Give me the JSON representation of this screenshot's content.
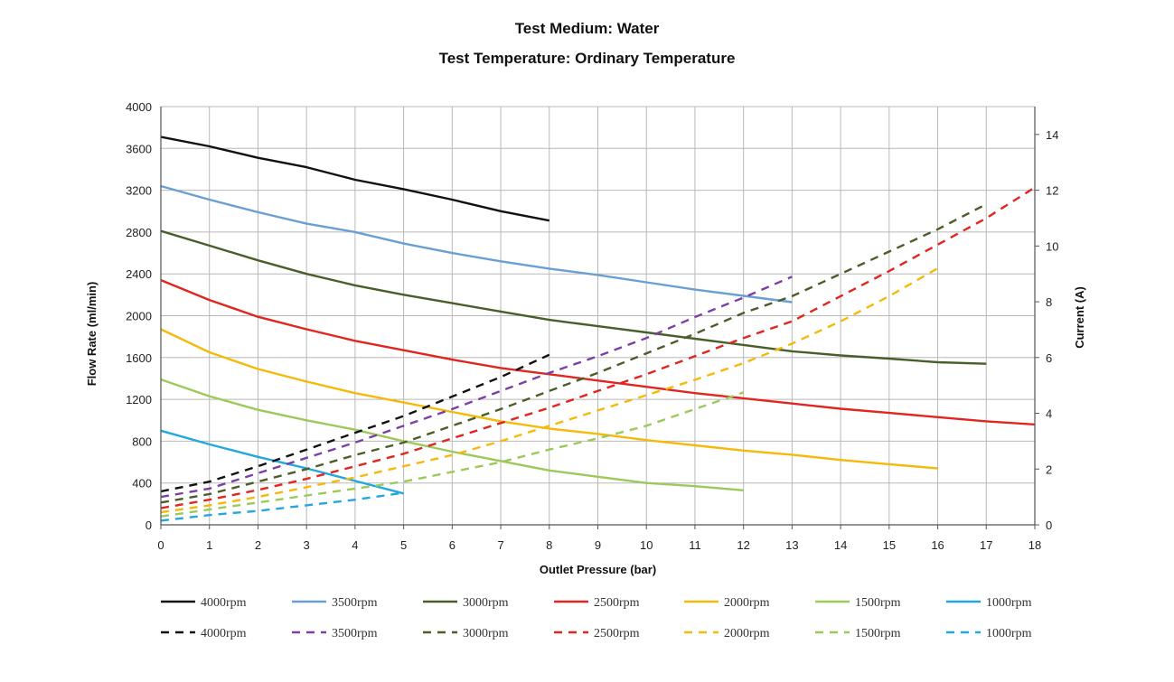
{
  "chart_data": {
    "type": "line",
    "title": "Test Medium: Water",
    "subtitle": "Test Temperature: Ordinary Temperature",
    "xlabel": "Outlet Pressure (bar)",
    "ylabel": "Flow Rate (ml/min)",
    "y2label": "Current (A)",
    "xlim": [
      0,
      18
    ],
    "ylim": [
      0,
      4000
    ],
    "y2lim": [
      0,
      15
    ],
    "xticks": [
      "0",
      "1",
      "2",
      "3",
      "4",
      "5",
      "6",
      "7",
      "8",
      "9",
      "10",
      "11",
      "12",
      "13",
      "14",
      "15",
      "16",
      "17",
      "18"
    ],
    "yticks": [
      "0",
      "400",
      "800",
      "1200",
      "1600",
      "2000",
      "2400",
      "2800",
      "3200",
      "3600",
      "4000"
    ],
    "y2ticks": [
      "0",
      "2",
      "4",
      "6",
      "8",
      "10",
      "12",
      "14"
    ],
    "grid": true,
    "legend_position": "bottom",
    "series": [
      {
        "name": "4000rpm",
        "axis": "left",
        "style": "solid",
        "color": "#111111",
        "points": [
          [
            0,
            3710
          ],
          [
            1,
            3620
          ],
          [
            2,
            3510
          ],
          [
            3,
            3420
          ],
          [
            4,
            3300
          ],
          [
            5,
            3210
          ],
          [
            6,
            3110
          ],
          [
            7,
            3000
          ],
          [
            8,
            2910
          ]
        ]
      },
      {
        "name": "3500rpm",
        "axis": "left",
        "style": "solid",
        "color": "#6a9fd4",
        "points": [
          [
            0,
            3240
          ],
          [
            1,
            3110
          ],
          [
            2,
            2990
          ],
          [
            3,
            2880
          ],
          [
            4,
            2800
          ],
          [
            5,
            2690
          ],
          [
            6,
            2600
          ],
          [
            7,
            2520
          ],
          [
            8,
            2450
          ],
          [
            9,
            2390
          ],
          [
            10,
            2320
          ],
          [
            11,
            2250
          ],
          [
            12,
            2190
          ],
          [
            13,
            2130
          ]
        ]
      },
      {
        "name": "3000rpm",
        "axis": "left",
        "style": "solid",
        "color": "#4a5e2a",
        "points": [
          [
            0,
            2810
          ],
          [
            1,
            2670
          ],
          [
            2,
            2530
          ],
          [
            3,
            2400
          ],
          [
            4,
            2290
          ],
          [
            5,
            2200
          ],
          [
            6,
            2120
          ],
          [
            7,
            2040
          ],
          [
            8,
            1960
          ],
          [
            9,
            1900
          ],
          [
            10,
            1840
          ],
          [
            11,
            1780
          ],
          [
            12,
            1720
          ],
          [
            13,
            1660
          ],
          [
            14,
            1620
          ],
          [
            15,
            1590
          ],
          [
            16,
            1555
          ],
          [
            17,
            1540
          ]
        ]
      },
      {
        "name": "2500rpm",
        "axis": "left",
        "style": "solid",
        "color": "#e0261e",
        "points": [
          [
            0,
            2340
          ],
          [
            1,
            2150
          ],
          [
            2,
            1990
          ],
          [
            3,
            1870
          ],
          [
            4,
            1760
          ],
          [
            5,
            1670
          ],
          [
            6,
            1580
          ],
          [
            7,
            1500
          ],
          [
            8,
            1440
          ],
          [
            9,
            1380
          ],
          [
            10,
            1320
          ],
          [
            11,
            1260
          ],
          [
            12,
            1210
          ],
          [
            13,
            1160
          ],
          [
            14,
            1110
          ],
          [
            15,
            1070
          ],
          [
            16,
            1030
          ],
          [
            17,
            990
          ],
          [
            18,
            960
          ]
        ]
      },
      {
        "name": "2000rpm",
        "axis": "left",
        "style": "solid",
        "color": "#f5b90a",
        "points": [
          [
            0,
            1870
          ],
          [
            1,
            1650
          ],
          [
            2,
            1490
          ],
          [
            3,
            1370
          ],
          [
            4,
            1260
          ],
          [
            5,
            1170
          ],
          [
            6,
            1080
          ],
          [
            7,
            990
          ],
          [
            8,
            920
          ],
          [
            9,
            870
          ],
          [
            10,
            810
          ],
          [
            11,
            760
          ],
          [
            12,
            710
          ],
          [
            13,
            670
          ],
          [
            14,
            620
          ],
          [
            15,
            580
          ],
          [
            16,
            540
          ]
        ]
      },
      {
        "name": "1500rpm",
        "axis": "left",
        "style": "solid",
        "color": "#9cc95a",
        "points": [
          [
            0,
            1390
          ],
          [
            1,
            1230
          ],
          [
            2,
            1100
          ],
          [
            3,
            1000
          ],
          [
            4,
            910
          ],
          [
            5,
            800
          ],
          [
            6,
            700
          ],
          [
            7,
            610
          ],
          [
            8,
            520
          ],
          [
            9,
            460
          ],
          [
            10,
            400
          ],
          [
            11,
            370
          ],
          [
            12,
            330
          ]
        ]
      },
      {
        "name": "1000rpm",
        "axis": "left",
        "style": "solid",
        "color": "#22a7df",
        "points": [
          [
            0,
            900
          ],
          [
            1,
            770
          ],
          [
            2,
            650
          ],
          [
            3,
            540
          ],
          [
            4,
            420
          ],
          [
            5,
            300
          ]
        ]
      },
      {
        "name": "4000rpm",
        "axis": "right",
        "style": "dashed",
        "color": "#111111",
        "points": [
          [
            0,
            1.2
          ],
          [
            1,
            1.55
          ],
          [
            2,
            2.1
          ],
          [
            3,
            2.7
          ],
          [
            4,
            3.3
          ],
          [
            5,
            3.9
          ],
          [
            6,
            4.6
          ],
          [
            7,
            5.3
          ],
          [
            8,
            6.1
          ]
        ]
      },
      {
        "name": "3500rpm",
        "axis": "right",
        "style": "dashed",
        "color": "#7b3fa6",
        "points": [
          [
            0,
            1.0
          ],
          [
            1,
            1.3
          ],
          [
            2,
            1.85
          ],
          [
            3,
            2.4
          ],
          [
            4,
            2.95
          ],
          [
            5,
            3.55
          ],
          [
            6,
            4.15
          ],
          [
            7,
            4.8
          ],
          [
            8,
            5.45
          ],
          [
            9,
            6.05
          ],
          [
            10,
            6.7
          ],
          [
            11,
            7.45
          ],
          [
            12,
            8.15
          ],
          [
            13,
            8.9
          ]
        ]
      },
      {
        "name": "3000rpm",
        "axis": "right",
        "style": "dashed",
        "color": "#4a5e2a",
        "points": [
          [
            0,
            0.8
          ],
          [
            1,
            1.1
          ],
          [
            2,
            1.55
          ],
          [
            3,
            2.0
          ],
          [
            4,
            2.5
          ],
          [
            5,
            2.95
          ],
          [
            6,
            3.55
          ],
          [
            7,
            4.15
          ],
          [
            8,
            4.8
          ],
          [
            9,
            5.45
          ],
          [
            10,
            6.15
          ],
          [
            11,
            6.85
          ],
          [
            12,
            7.6
          ],
          [
            13,
            8.2
          ],
          [
            14,
            9.0
          ],
          [
            15,
            9.8
          ],
          [
            16,
            10.6
          ],
          [
            17,
            11.5
          ]
        ]
      },
      {
        "name": "2500rpm",
        "axis": "right",
        "style": "dashed",
        "color": "#e0261e",
        "points": [
          [
            0,
            0.6
          ],
          [
            1,
            0.9
          ],
          [
            2,
            1.25
          ],
          [
            3,
            1.65
          ],
          [
            4,
            2.1
          ],
          [
            5,
            2.55
          ],
          [
            6,
            3.1
          ],
          [
            7,
            3.65
          ],
          [
            8,
            4.2
          ],
          [
            9,
            4.8
          ],
          [
            10,
            5.4
          ],
          [
            11,
            6.05
          ],
          [
            12,
            6.7
          ],
          [
            13,
            7.3
          ],
          [
            14,
            8.2
          ],
          [
            15,
            9.1
          ],
          [
            16,
            10.05
          ],
          [
            17,
            11.0
          ],
          [
            18,
            12.1
          ]
        ]
      },
      {
        "name": "2000rpm",
        "axis": "right",
        "style": "dashed",
        "color": "#f5b90a",
        "points": [
          [
            0,
            0.45
          ],
          [
            1,
            0.7
          ],
          [
            2,
            1.0
          ],
          [
            3,
            1.35
          ],
          [
            4,
            1.7
          ],
          [
            5,
            2.1
          ],
          [
            6,
            2.5
          ],
          [
            7,
            3.0
          ],
          [
            8,
            3.55
          ],
          [
            9,
            4.1
          ],
          [
            10,
            4.65
          ],
          [
            11,
            5.2
          ],
          [
            12,
            5.8
          ],
          [
            13,
            6.5
          ],
          [
            14,
            7.3
          ],
          [
            15,
            8.2
          ],
          [
            16,
            9.2
          ]
        ]
      },
      {
        "name": "1500rpm",
        "axis": "right",
        "style": "dashed",
        "color": "#9cc95a",
        "points": [
          [
            0,
            0.3
          ],
          [
            1,
            0.55
          ],
          [
            2,
            0.8
          ],
          [
            3,
            1.05
          ],
          [
            4,
            1.3
          ],
          [
            5,
            1.55
          ],
          [
            6,
            1.9
          ],
          [
            7,
            2.25
          ],
          [
            8,
            2.7
          ],
          [
            9,
            3.1
          ],
          [
            10,
            3.55
          ],
          [
            11,
            4.15
          ],
          [
            12,
            4.75
          ]
        ]
      },
      {
        "name": "1000rpm",
        "axis": "right",
        "style": "dashed",
        "color": "#22a7df",
        "points": [
          [
            0,
            0.15
          ],
          [
            1,
            0.35
          ],
          [
            2,
            0.5
          ],
          [
            3,
            0.7
          ],
          [
            4,
            0.9
          ],
          [
            5,
            1.15
          ]
        ]
      }
    ]
  }
}
